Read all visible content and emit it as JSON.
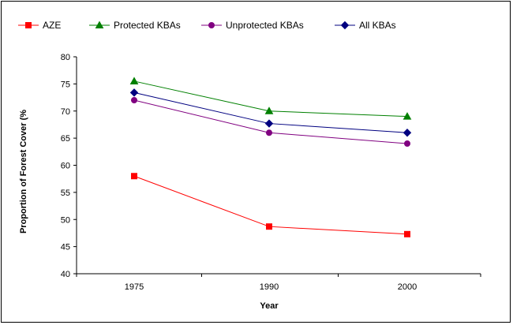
{
  "chart_data": {
    "type": "line",
    "categories": [
      "1975",
      "1990",
      "2000"
    ],
    "series": [
      {
        "name": "AZE",
        "values": [
          58,
          48.7,
          47.3
        ],
        "color": "#ff0000",
        "marker": "square"
      },
      {
        "name": "Protected KBAs",
        "values": [
          75.5,
          70,
          69
        ],
        "color": "#008000",
        "marker": "triangle"
      },
      {
        "name": "Unprotected KBAs",
        "values": [
          72,
          66,
          64
        ],
        "color": "#800080",
        "marker": "circle"
      },
      {
        "name": "All KBAs",
        "values": [
          73.4,
          67.7,
          66
        ],
        "color": "#000080",
        "marker": "diamond"
      }
    ],
    "xlabel": "Year",
    "ylabel": "Proportion of Forest Cover (%",
    "ylim": [
      40,
      80
    ],
    "yticks": [
      40,
      45,
      50,
      55,
      60,
      65,
      70,
      75,
      80
    ],
    "legend_position": "top",
    "grid": false
  }
}
